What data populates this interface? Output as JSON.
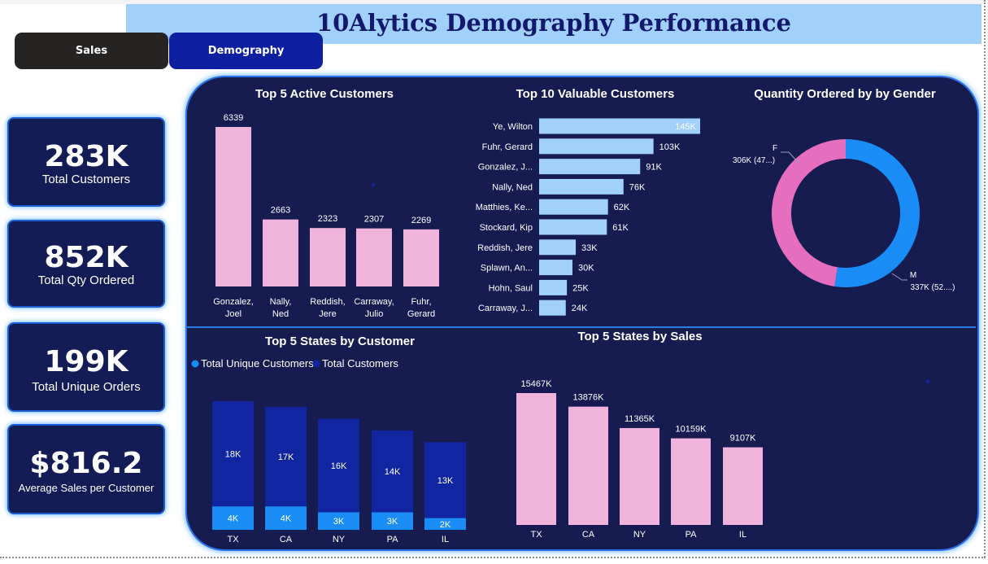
{
  "header": {
    "title": "10Alytics Demography Performance"
  },
  "nav": {
    "sales_label": "Sales",
    "demography_label": "Demography"
  },
  "kpis": [
    {
      "value": "283K",
      "label": "Total Customers"
    },
    {
      "value": "852K",
      "label": "Total Qty Ordered"
    },
    {
      "value": "199K",
      "label": "Total Unique Orders"
    },
    {
      "value": "$816.2",
      "label": "Average Sales per Customer"
    }
  ],
  "colors": {
    "pink": "#efb3dc",
    "light_blue": "#a1d0fb",
    "dark_blue": "#1125a0",
    "bright_blue": "#1a8cf5",
    "donut_pink": "#e66ebe",
    "panel": "#161c50"
  },
  "chart_data": [
    {
      "type": "bar",
      "title": "Top 5 Active Customers",
      "categories": [
        [
          "Gonzalez,",
          "Joel"
        ],
        [
          "Nally,",
          "Ned"
        ],
        [
          "Reddish,",
          "Jere"
        ],
        [
          "Carraway,",
          "Julio"
        ],
        [
          "Fuhr,",
          "Gerard"
        ]
      ],
      "values": [
        6339,
        2663,
        2323,
        2307,
        2269
      ],
      "labels": [
        "6339",
        "2663",
        "2323",
        "2307",
        "2269"
      ]
    },
    {
      "type": "bar",
      "orientation": "horizontal",
      "title": "Top 10 Valuable Customers",
      "categories": [
        "Ye, Wilton",
        "Fuhr, Gerard",
        "Gonzalez, J...",
        "Nally, Ned",
        "Matthies, Ke...",
        "Stockard, Kip",
        "Reddish, Jere",
        "Splawn, An...",
        "Hohn, Saul",
        "Carraway, J..."
      ],
      "values": [
        145,
        103,
        91,
        76,
        62,
        61,
        33,
        30,
        25,
        24
      ],
      "labels": [
        "145K",
        "103K",
        "91K",
        "76K",
        "62K",
        "61K",
        "33K",
        "30K",
        "25K",
        "24K"
      ],
      "unit": "K"
    },
    {
      "type": "pie",
      "variant": "donut",
      "title": "Quantity Ordered by by Gender",
      "slices": [
        {
          "name": "F",
          "value": 306,
          "label": "306K (47...)"
        },
        {
          "name": "M",
          "value": 337,
          "label": "337K (52....)"
        }
      ],
      "unit": "K"
    },
    {
      "type": "bar",
      "variant": "stacked",
      "title": "Top 5 States by Customer",
      "categories": [
        "TX",
        "CA",
        "NY",
        "PA",
        "IL"
      ],
      "series": [
        {
          "name": "Total Unique Customers",
          "values": [
            4,
            4,
            3,
            3,
            2
          ],
          "labels": [
            "4K",
            "4K",
            "3K",
            "3K",
            "2K"
          ]
        },
        {
          "name": "Total Customers",
          "values": [
            18,
            17,
            16,
            14,
            13
          ],
          "labels": [
            "18K",
            "17K",
            "16K",
            "14K",
            "13K"
          ]
        }
      ],
      "legend": "top-left",
      "unit": "K"
    },
    {
      "type": "bar",
      "title": "Top 5 States by Sales",
      "categories": [
        "TX",
        "CA",
        "NY",
        "PA",
        "IL"
      ],
      "values": [
        15467,
        13876,
        11365,
        10159,
        9107
      ],
      "labels": [
        "15467K",
        "13876K",
        "11365K",
        "10159K",
        "9107K"
      ],
      "unit": "K"
    }
  ]
}
